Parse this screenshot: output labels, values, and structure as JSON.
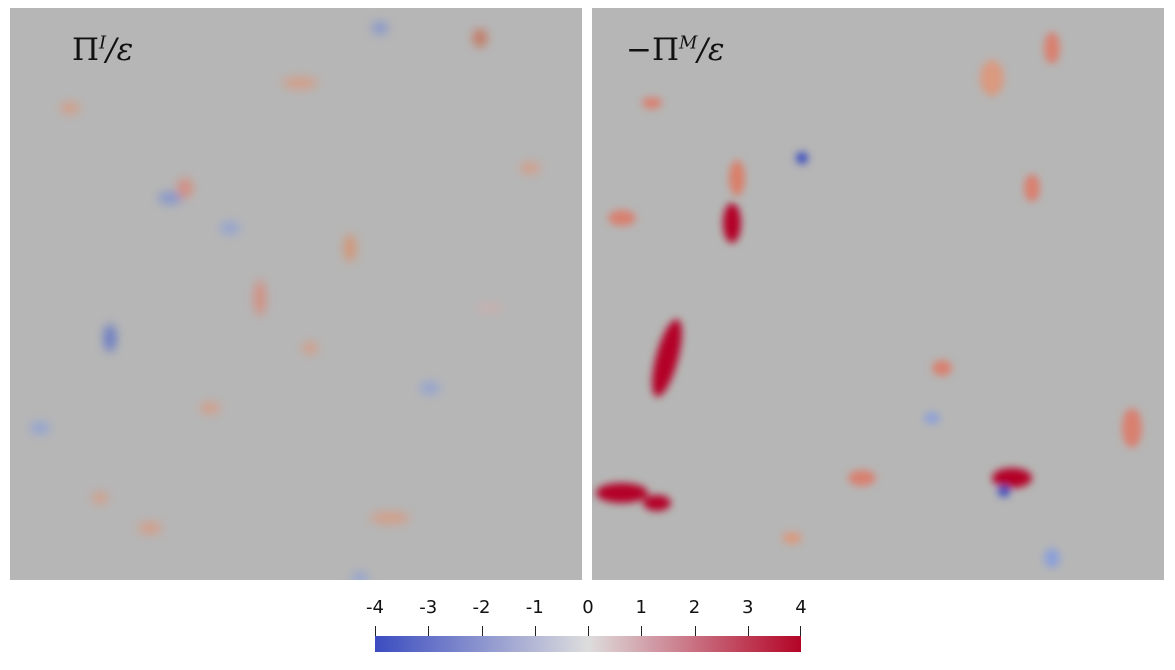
{
  "panels": [
    {
      "label_main": "Π",
      "label_sup": "I",
      "label_rest": "/ε"
    },
    {
      "label_main": "−Π",
      "label_sup": "M",
      "label_rest": "/ε"
    }
  ],
  "colorbar": {
    "ticks": [
      "-4",
      "-3",
      "-2",
      "-1",
      "0",
      "1",
      "2",
      "3",
      "4"
    ],
    "colors": {
      "low": "#3b4cc0",
      "mid": "#dddddd",
      "high": "#b40426"
    }
  }
}
